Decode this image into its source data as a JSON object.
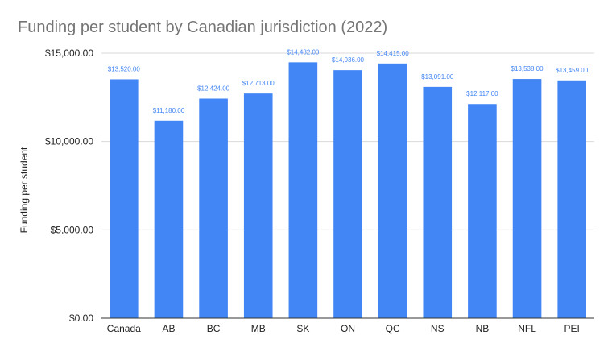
{
  "chart_data": {
    "type": "bar",
    "title": "Funding per student by Canadian jurisdiction (2022)",
    "xlabel": "",
    "ylabel": "Funding per student",
    "ylim": [
      0,
      15000
    ],
    "yticks": [
      0,
      5000,
      10000,
      15000
    ],
    "ytick_labels": [
      "$0.00",
      "$5,000.00",
      "$10,000.00",
      "$15,000.00"
    ],
    "grid": true,
    "legend": "none",
    "categories": [
      "Canada",
      "AB",
      "BC",
      "MB",
      "SK",
      "ON",
      "QC",
      "NS",
      "NB",
      "NFL",
      "PEI"
    ],
    "values": [
      13520,
      11180,
      12424,
      12713,
      14482,
      14036,
      14415,
      13091,
      12117,
      13538,
      13459
    ],
    "value_labels": [
      "$13,520.00",
      "$11,180.00",
      "$12,424.00",
      "$12,713.00",
      "$14,482.00",
      "$14,036.00",
      "$14,415.00",
      "$13,091.00",
      "$12,117.00",
      "$13,538.00",
      "$13,459.00"
    ],
    "bar_color": "#4285f4",
    "label_color": "#4285f4",
    "gridline_color": "#d9d9d9",
    "axis_color": "#333333"
  }
}
